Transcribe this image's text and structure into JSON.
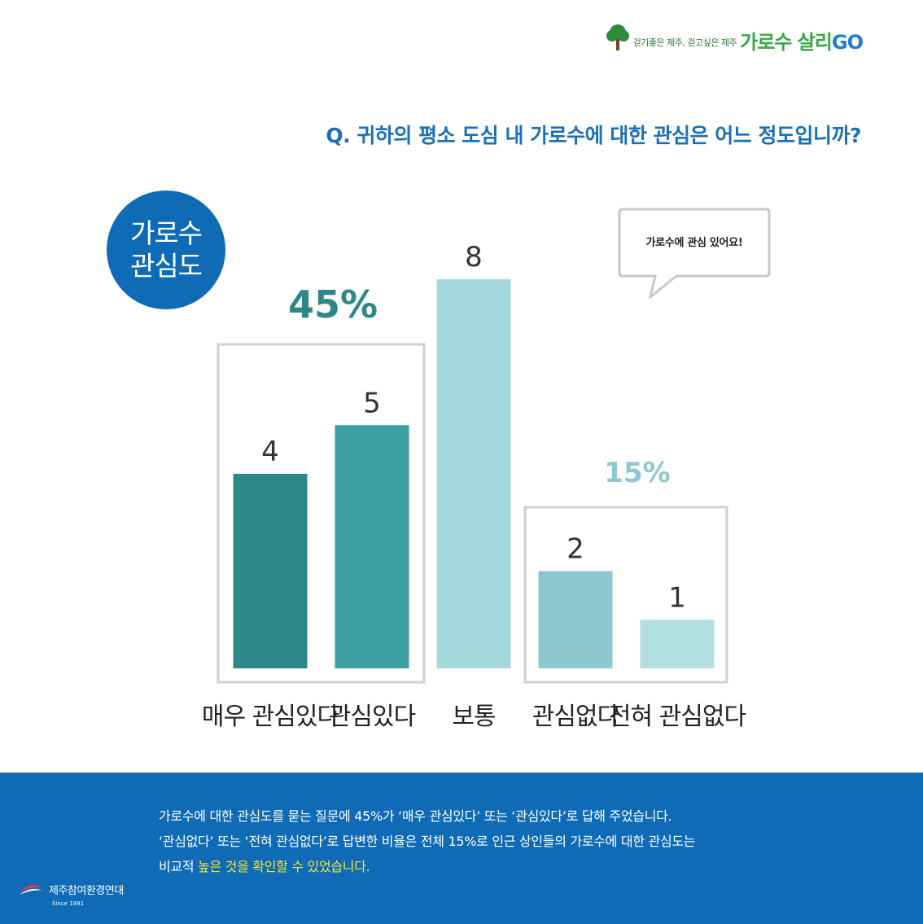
{
  "brand": {
    "tagline": "걷기좋은 제주, 걷고싶은 제주",
    "name_main": "가로수 살리",
    "name_go": "GO",
    "tree_color": "#2e8b3e"
  },
  "question": "Q. 귀하의 평소 도심 내 가로수에 대한 관심은 어느 정도입니까?",
  "badge": {
    "line1": "가로수",
    "line2": "관심도"
  },
  "speech_bubble": "가로수에 관심 있어요!",
  "chart_data": {
    "type": "bar",
    "categories": [
      "매우 관심있다",
      "관심있다",
      "보통",
      "관심없다",
      "전혀 관심없다"
    ],
    "values": [
      4,
      5,
      8,
      2,
      1
    ],
    "colors": [
      "#2e8788",
      "#3d9ea3",
      "#a3d9dc",
      "#8ec8cf",
      "#b2dfe0"
    ],
    "groups": [
      {
        "label": "45%",
        "categories": [
          "매우 관심있다",
          "관심있다"
        ],
        "color": "#2e8788"
      },
      {
        "label": "15%",
        "categories": [
          "관심없다",
          "전혀 관심없다"
        ],
        "color": "#8ec8cf"
      }
    ],
    "title": "",
    "xlabel": "",
    "ylabel": "",
    "ylim": [
      0,
      8
    ],
    "grid": false
  },
  "footer": {
    "line1": "가로수에 대한 관심도를 묻는 질문에 45%가 ‘매우 관심있다’ 또는 ‘관심있다’로 답해 주었습니다.",
    "line2": "‘관심없다’ 또는 ‘전혀 관심없다’로 답변한 비율은 전체 15%로 인근 상인들의 가로수에 대한 관심도는",
    "line3_plain": "비교적 ",
    "line3_highlight": "높은 것을 확인할 수 있었습니다.",
    "org_name": "제주참여환경연대",
    "org_since": "Since 1991"
  }
}
